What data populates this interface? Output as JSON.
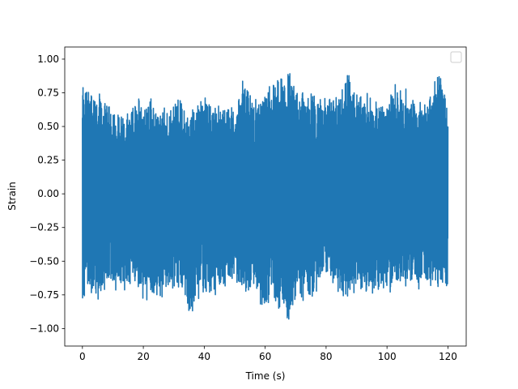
{
  "chart_data": {
    "type": "line",
    "title": "",
    "xlabel": "Time (s)",
    "ylabel": "Strain",
    "xlim": [
      -5.8,
      126.0
    ],
    "ylim": [
      -1.13,
      1.09
    ],
    "x_ticks": [
      0,
      20,
      40,
      60,
      80,
      100,
      120
    ],
    "x_tick_labels": [
      "0",
      "20",
      "40",
      "60",
      "80",
      "100",
      "120"
    ],
    "y_ticks": [
      -1.0,
      -0.75,
      -0.5,
      -0.25,
      0.0,
      0.25,
      0.5,
      0.75,
      1.0
    ],
    "y_tick_labels": [
      "−1.00",
      "−0.75",
      "−0.50",
      "−0.25",
      "0.00",
      "0.25",
      "0.50",
      "0.75",
      "1.00"
    ],
    "grid": false,
    "legend": {
      "placement": "top-right",
      "entries": []
    },
    "series": [
      {
        "color": "#1f77b4",
        "x_range": [
          0,
          120
        ],
        "envelope": {
          "x": [
            0,
            2.5,
            5,
            7.5,
            10,
            12.5,
            15,
            17.5,
            20,
            22.5,
            25,
            27.5,
            30,
            32.5,
            35,
            37.5,
            40,
            42.5,
            45,
            47.5,
            50,
            52.5,
            55,
            57.5,
            60,
            62.5,
            65,
            67.5,
            70,
            72.5,
            75,
            77.5,
            80,
            82.5,
            85,
            87.5,
            90,
            92.5,
            95,
            97.5,
            100,
            102.5,
            105,
            107.5,
            110,
            112.5,
            115,
            117.5,
            120
          ],
          "upper": [
            0.9,
            0.83,
            0.8,
            0.73,
            0.65,
            0.63,
            0.6,
            0.76,
            0.68,
            0.72,
            0.67,
            0.65,
            0.7,
            0.72,
            0.58,
            0.78,
            0.75,
            0.7,
            0.67,
            0.7,
            0.65,
            0.88,
            0.78,
            0.7,
            0.82,
            0.86,
            0.88,
            0.94,
            0.86,
            0.8,
            0.78,
            0.76,
            0.72,
            0.75,
            0.8,
            1.0,
            0.82,
            0.78,
            0.75,
            0.7,
            0.7,
            0.86,
            0.76,
            0.82,
            0.7,
            0.72,
            0.86,
            0.93,
            0.72
          ],
          "lower": [
            -0.83,
            -0.75,
            -0.82,
            -0.7,
            -0.72,
            -0.76,
            -0.7,
            -0.7,
            -0.88,
            -0.78,
            -0.82,
            -0.75,
            -0.72,
            -0.75,
            -1.0,
            -0.85,
            -0.74,
            -0.78,
            -0.72,
            -0.72,
            -0.7,
            -0.72,
            -0.75,
            -0.78,
            -0.9,
            -0.82,
            -0.88,
            -1.04,
            -0.82,
            -0.84,
            -0.8,
            -0.72,
            -0.62,
            -0.7,
            -0.78,
            -0.8,
            -0.72,
            -0.75,
            -0.78,
            -0.74,
            -0.72,
            -0.76,
            -0.7,
            -0.72,
            -0.74,
            -0.7,
            -0.7,
            -0.73,
            -0.68
          ]
        }
      }
    ]
  }
}
